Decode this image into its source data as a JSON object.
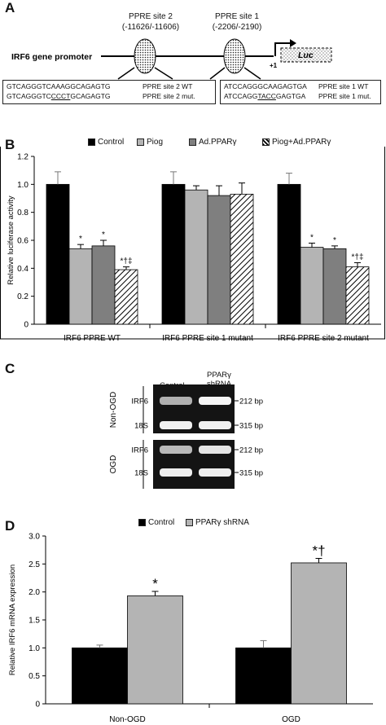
{
  "panels": {
    "a": "A",
    "b": "B",
    "c": "C",
    "d": "D"
  },
  "panel_a": {
    "promoter_label": "IRF6 gene promoter",
    "site2_name": "PPRE site 2",
    "site2_pos": "(-11626/-11606)",
    "site1_name": "PPRE site 1",
    "site1_pos": "(-2206/-2190)",
    "tss": "+1",
    "luc": "Luc",
    "box2": {
      "wt_seq": "GTCAGGGTCAAAGGCAGAGTG",
      "wt_label": "PPRE site 2 WT",
      "mut_pre": "GTCAGGGTC",
      "mut_u": "CCCT",
      "mut_post": "GCAGAGTG",
      "mut_label": "PPRE site 2 mut."
    },
    "box1": {
      "wt_seq": "ATCCAGGGCAAGAGTGA",
      "wt_label": "PPRE site 1 WT",
      "mut_pre": "ATCCAGG",
      "mut_u": "TACC",
      "mut_post": "GAGTGA",
      "mut_label": "PPRE site 1 mut."
    }
  },
  "panel_c": {
    "col1": "Control",
    "col2a": "PPARγ",
    "col2b": "shRNA",
    "group1": "Non-OGD",
    "group2": "OGD",
    "rows": [
      "IRF6",
      "18S",
      "IRF6",
      "18S"
    ],
    "sizes": [
      "212 bp",
      "315 bp",
      "212 bp",
      "315 bp"
    ],
    "band_intensity": [
      [
        0.55,
        0.95
      ],
      [
        0.92,
        0.92
      ],
      [
        0.6,
        0.85
      ],
      [
        0.9,
        0.9
      ]
    ]
  },
  "chart_data": [
    {
      "type": "bar",
      "panel": "B",
      "ylabel": "Relative luciferase activity",
      "ylim": [
        0,
        1.2
      ],
      "yticks": [
        "0",
        "0.2",
        "0.4",
        "0.6",
        "0.8",
        "1.0",
        "1.2"
      ],
      "categories": [
        "IRF6 PPRE WT",
        "IRF6 PPRE site 1 mutant",
        "IRF6 PPRE site 2 mutant"
      ],
      "series": [
        {
          "name": "Control",
          "values": [
            1.0,
            1.0,
            1.0
          ],
          "errors": [
            0.09,
            0.09,
            0.08
          ],
          "fill": "#000000"
        },
        {
          "name": "Piog",
          "values": [
            0.54,
            0.96,
            0.55
          ],
          "errors": [
            0.03,
            0.03,
            0.03
          ],
          "fill": "#b4b4b4"
        },
        {
          "name": "Ad.PPARγ",
          "values": [
            0.56,
            0.92,
            0.54
          ],
          "errors": [
            0.04,
            0.07,
            0.02
          ],
          "fill": "#7f7f7f"
        },
        {
          "name": "Piog+Ad.PPARγ",
          "values": [
            0.39,
            0.93,
            0.41
          ],
          "errors": [
            0.02,
            0.08,
            0.03
          ],
          "fill": "hatch"
        }
      ],
      "annotations": [
        [
          "",
          "*",
          "*",
          "*†‡"
        ],
        [
          "",
          "",
          "",
          ""
        ],
        [
          "",
          "*",
          "*",
          "*†‡"
        ]
      ],
      "legend": "top"
    },
    {
      "type": "bar",
      "panel": "D",
      "ylabel": "Relative IRF6 mRNA expression",
      "ylim": [
        0,
        3.0
      ],
      "yticks": [
        "0",
        "0.5",
        "1.0",
        "1.5",
        "2.0",
        "2.5",
        "3.0"
      ],
      "categories": [
        "Non-OGD",
        "OGD"
      ],
      "series": [
        {
          "name": "Control",
          "values": [
            1.0,
            1.0
          ],
          "errors": [
            0.05,
            0.13
          ],
          "fill": "#000000"
        },
        {
          "name": "PPARγ shRNA",
          "values": [
            1.93,
            2.52
          ],
          "errors": [
            0.08,
            0.08
          ],
          "fill": "#b4b4b4"
        }
      ],
      "annotations": [
        [
          "",
          "*"
        ],
        [
          "",
          "*†"
        ]
      ],
      "legend": "top"
    }
  ]
}
